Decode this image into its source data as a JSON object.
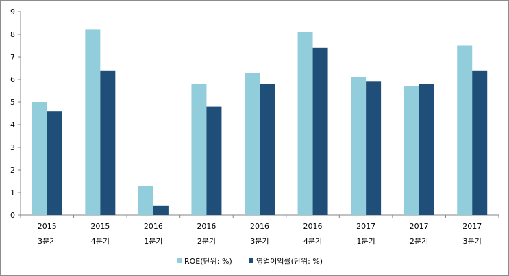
{
  "chart_data": {
    "type": "bar",
    "categories": [
      [
        "2015",
        "3분기"
      ],
      [
        "2015",
        "4분기"
      ],
      [
        "2016",
        "1분기"
      ],
      [
        "2016",
        "2분기"
      ],
      [
        "2016",
        "3분기"
      ],
      [
        "2016",
        "4분기"
      ],
      [
        "2017",
        "1분기"
      ],
      [
        "2017",
        "2분기"
      ],
      [
        "2017",
        "3분기"
      ]
    ],
    "series": [
      {
        "name": "ROE(단위: %)",
        "color": "#92cddc",
        "values": [
          5.0,
          8.2,
          1.3,
          5.8,
          6.3,
          8.1,
          6.1,
          5.7,
          7.5
        ]
      },
      {
        "name": "영업이익률(단위: %)",
        "color": "#1f4e79",
        "values": [
          4.6,
          6.4,
          0.4,
          4.8,
          5.8,
          7.4,
          5.9,
          5.8,
          6.4
        ]
      }
    ],
    "ylim": [
      0,
      9
    ],
    "yticks": [
      0,
      1,
      2,
      3,
      4,
      5,
      6,
      7,
      8,
      9
    ],
    "grid": false,
    "legend_position": "bottom"
  }
}
